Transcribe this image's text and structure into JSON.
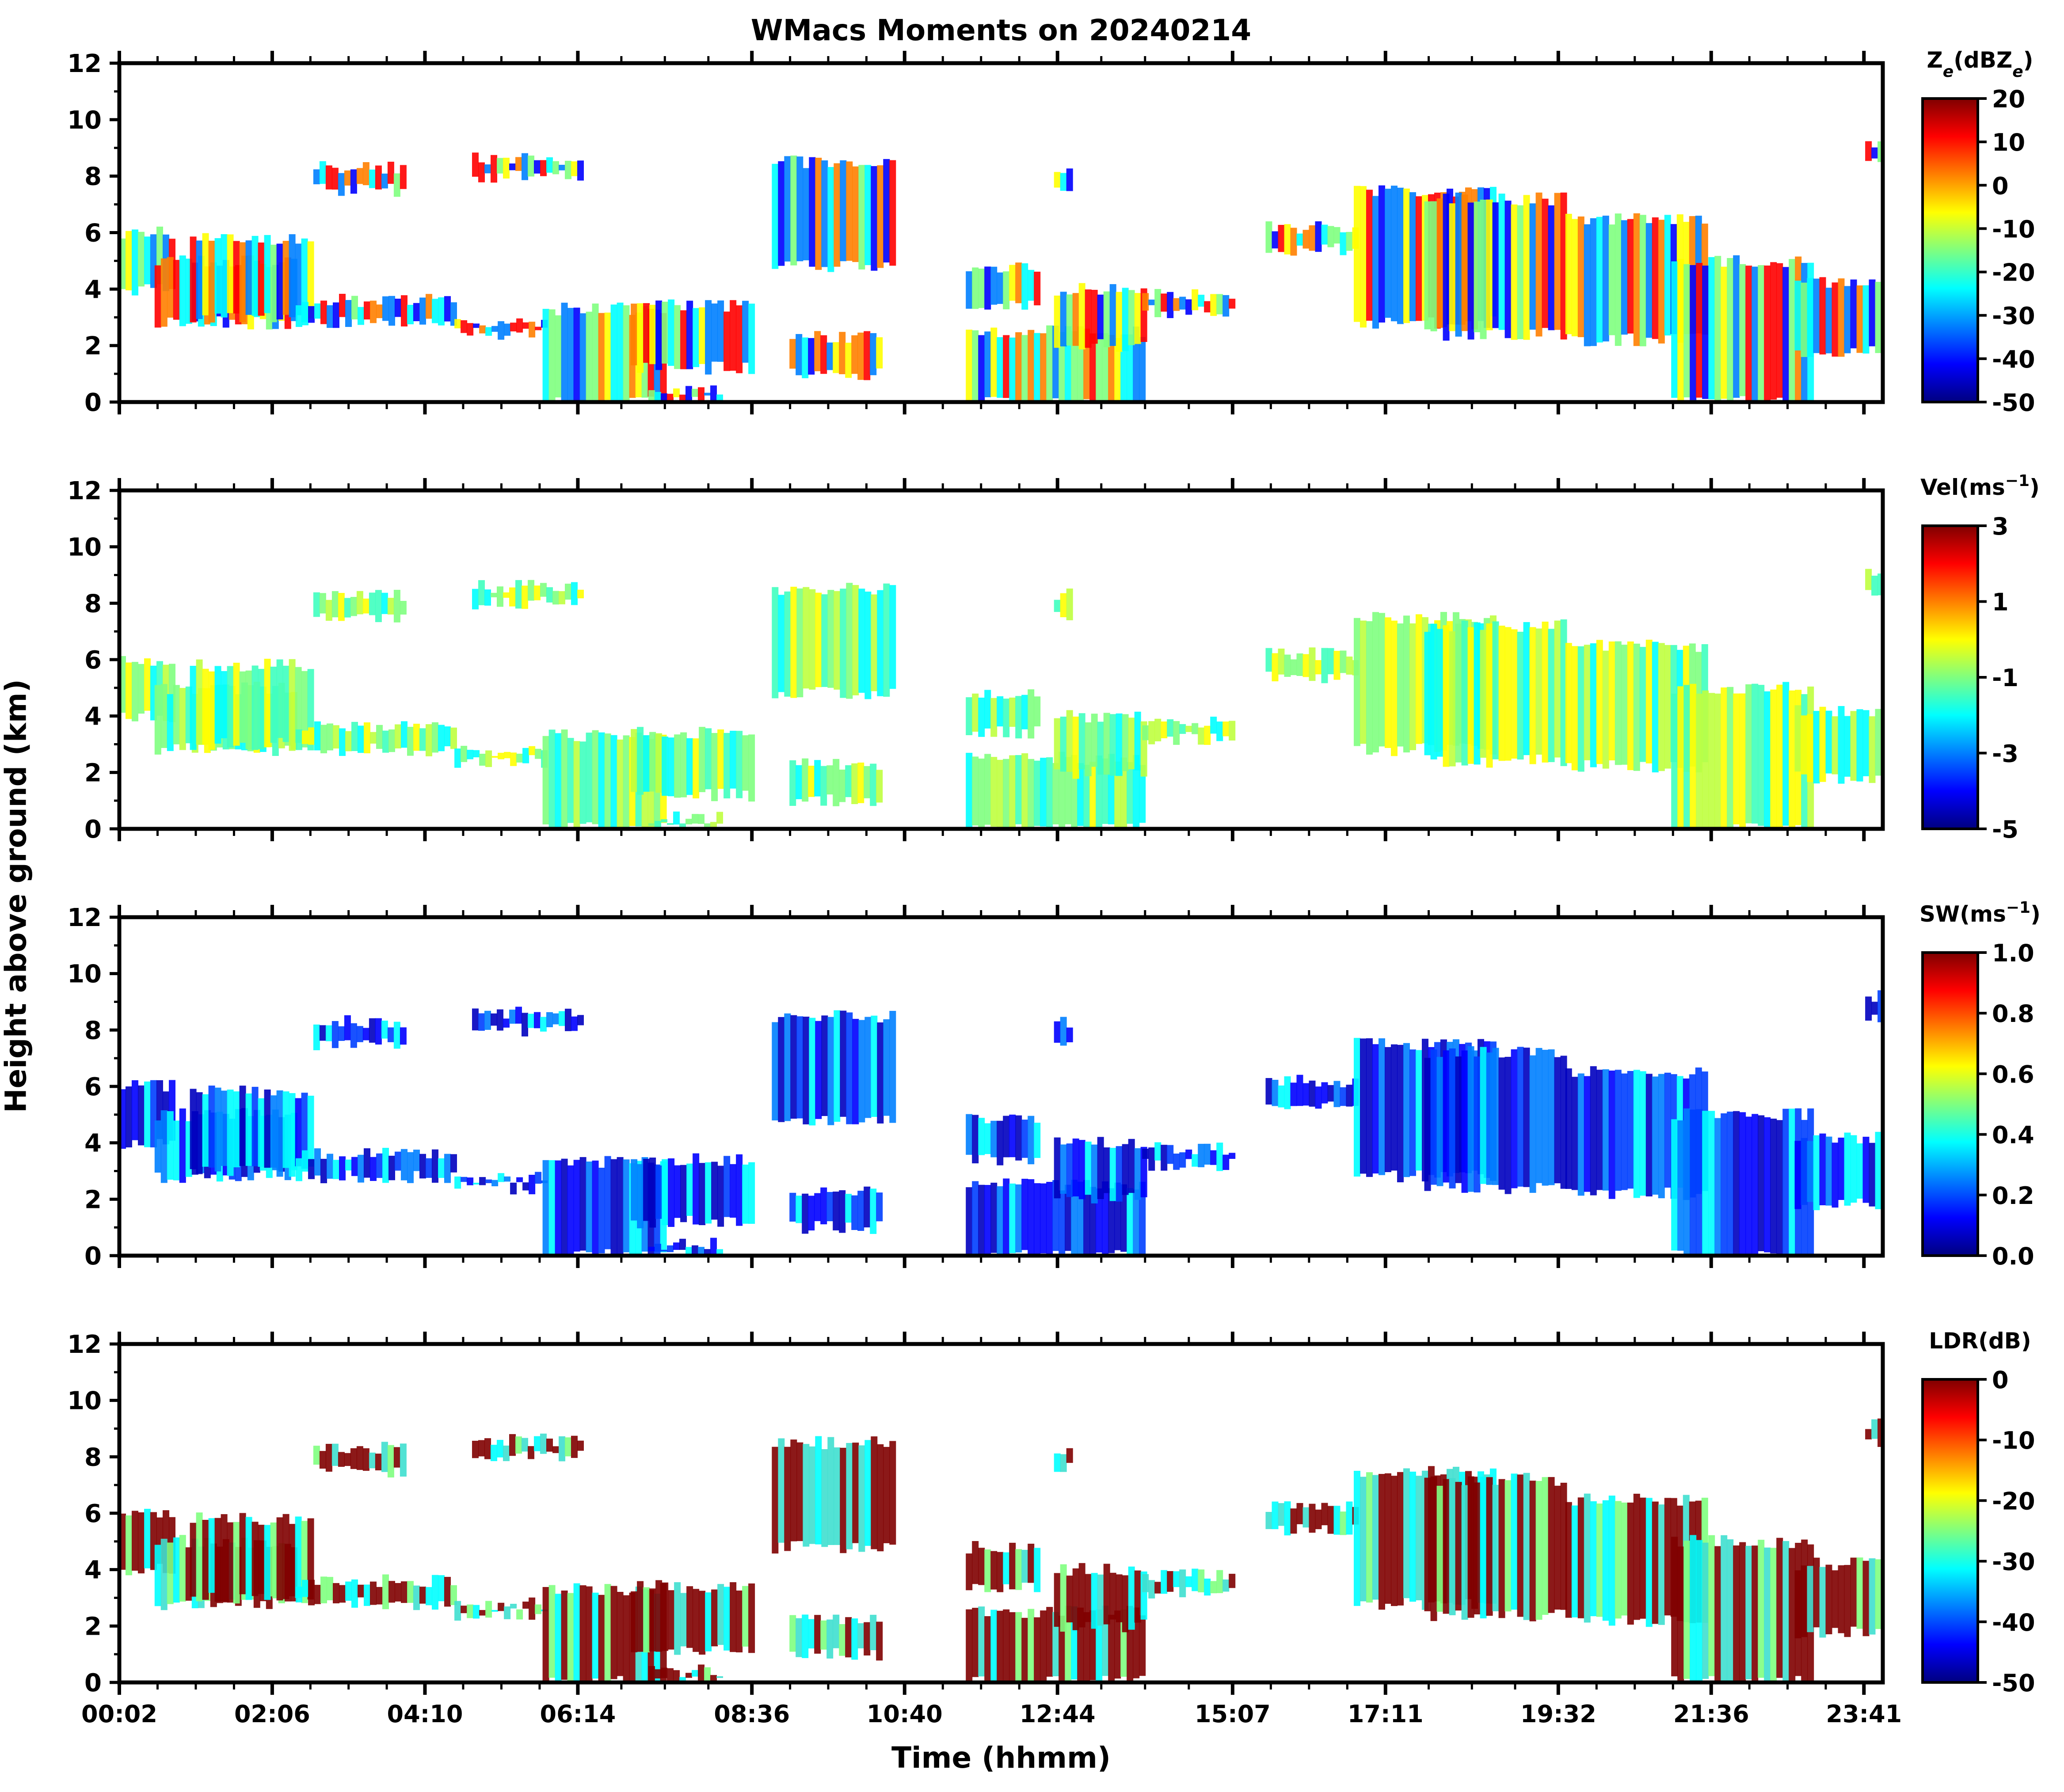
{
  "figure": {
    "title": "WMacs Moments on 20240214",
    "ylabel": "Height above ground (km)",
    "xlabel": "Time (hhmm)"
  },
  "chart_data": [
    {
      "type": "heatmap",
      "panel": "Ze",
      "colorbar_label": "Z<sub>e</sub>(dBZ<sub>e</sub>)",
      "colorbar_label_parts": [
        "Z",
        "e",
        "(dBZ",
        "e",
        ")"
      ],
      "colorbar_ticks": [
        "20",
        "10",
        "0",
        "-10",
        "-20",
        "-30",
        "-40",
        "-50"
      ],
      "vrange": [
        -50,
        20
      ],
      "ylim": [
        0,
        12
      ],
      "yticks": [
        "0",
        "2",
        "4",
        "6",
        "8",
        "10",
        "12"
      ],
      "xticks": []
    },
    {
      "type": "heatmap",
      "panel": "Vel",
      "colorbar_label": "Vel(ms<sup>-1</sup>)",
      "colorbar_label_parts": [
        "Vel(ms",
        "−1",
        ")"
      ],
      "colorbar_ticks": [
        "3",
        "1",
        "-1",
        "-3",
        "-5"
      ],
      "vrange": [
        -5,
        3
      ],
      "ylim": [
        0,
        12
      ],
      "yticks": [
        "0",
        "2",
        "4",
        "6",
        "8",
        "10",
        "12"
      ],
      "xticks": []
    },
    {
      "type": "heatmap",
      "panel": "SW",
      "colorbar_label": "SW(ms<sup>-1</sup>)",
      "colorbar_label_parts": [
        "SW(ms",
        "−1",
        ")"
      ],
      "colorbar_ticks": [
        "1.0",
        "0.8",
        "0.6",
        "0.4",
        "0.2",
        "0.0"
      ],
      "vrange": [
        0.0,
        1.0
      ],
      "ylim": [
        0,
        12
      ],
      "yticks": [
        "0",
        "2",
        "4",
        "6",
        "8",
        "10",
        "12"
      ],
      "xticks": []
    },
    {
      "type": "heatmap",
      "panel": "LDR",
      "colorbar_label": "LDR(dB)",
      "colorbar_label_parts": [
        "LDR(dB)"
      ],
      "colorbar_ticks": [
        "0",
        "-10",
        "-20",
        "-30",
        "-40",
        "-50"
      ],
      "vrange": [
        -50,
        0
      ],
      "ylim": [
        0,
        12
      ],
      "yticks": [
        "0",
        "2",
        "4",
        "6",
        "8",
        "10",
        "12"
      ],
      "xticks": [
        "00:02",
        "02:06",
        "04:10",
        "06:14",
        "08:36",
        "10:40",
        "12:44",
        "15:07",
        "17:11",
        "19:32",
        "21:36",
        "23:41"
      ]
    }
  ],
  "colormap": [
    "#00007f",
    "#0000ff",
    "#007fff",
    "#00ffff",
    "#7fff7f",
    "#ffff00",
    "#ff7f00",
    "#ff0000",
    "#7f0000"
  ]
}
